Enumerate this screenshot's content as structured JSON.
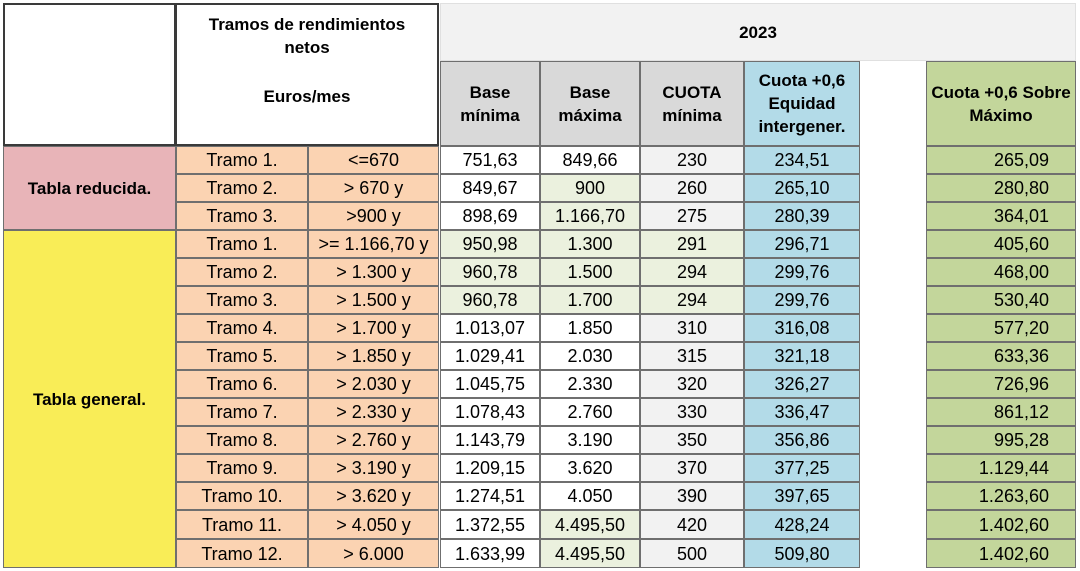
{
  "header": {
    "tramos_title": "Tramos de rendimientos netos",
    "tramos_units": "Euros/mes",
    "year": "2023",
    "columns": [
      "Base mínima",
      "Base máxima",
      "CUOTA mínima",
      "Cuota +0,6 Equidad intergener.",
      "Cuota +0,6 Sobre Máximo"
    ]
  },
  "groups": [
    {
      "label": "Tabla reducida.",
      "color": "#e8b4b8"
    },
    {
      "label": "Tabla general.",
      "color": "#f9ed57"
    }
  ],
  "rows": [
    {
      "tramo": "Tramo 1.",
      "rango": "<=670",
      "base_min": "751,63",
      "base_max": "849,66",
      "cuota_min": "230",
      "cuota_equidad": "234,51",
      "cuota_max": "265,09"
    },
    {
      "tramo": "Tramo 2.",
      "rango": "> 670 y",
      "base_min": "849,67",
      "base_max": "900",
      "cuota_min": "260",
      "cuota_equidad": "265,10",
      "cuota_max": "280,80"
    },
    {
      "tramo": "Tramo 3.",
      "rango": ">900 y",
      "base_min": "898,69",
      "base_max": "1.166,70",
      "cuota_min": "275",
      "cuota_equidad": "280,39",
      "cuota_max": "364,01"
    },
    {
      "tramo": "Tramo 1.",
      "rango": ">= 1.166,70 y",
      "base_min": "950,98",
      "base_max": "1.300",
      "cuota_min": "291",
      "cuota_equidad": "296,71",
      "cuota_max": "405,60"
    },
    {
      "tramo": "Tramo 2.",
      "rango": "> 1.300 y",
      "base_min": "960,78",
      "base_max": "1.500",
      "cuota_min": "294",
      "cuota_equidad": "299,76",
      "cuota_max": "468,00"
    },
    {
      "tramo": "Tramo 3.",
      "rango": "> 1.500 y",
      "base_min": "960,78",
      "base_max": "1.700",
      "cuota_min": "294",
      "cuota_equidad": "299,76",
      "cuota_max": "530,40"
    },
    {
      "tramo": "Tramo 4.",
      "rango": "> 1.700 y",
      "base_min": "1.013,07",
      "base_max": "1.850",
      "cuota_min": "310",
      "cuota_equidad": "316,08",
      "cuota_max": "577,20"
    },
    {
      "tramo": "Tramo 5.",
      "rango": "> 1.850 y",
      "base_min": "1.029,41",
      "base_max": "2.030",
      "cuota_min": "315",
      "cuota_equidad": "321,18",
      "cuota_max": "633,36"
    },
    {
      "tramo": "Tramo 6.",
      "rango": "> 2.030 y",
      "base_min": "1.045,75",
      "base_max": "2.330",
      "cuota_min": "320",
      "cuota_equidad": "326,27",
      "cuota_max": "726,96"
    },
    {
      "tramo": "Tramo 7.",
      "rango": "> 2.330 y",
      "base_min": "1.078,43",
      "base_max": "2.760",
      "cuota_min": "330",
      "cuota_equidad": "336,47",
      "cuota_max": "861,12"
    },
    {
      "tramo": "Tramo 8.",
      "rango": "> 2.760 y",
      "base_min": "1.143,79",
      "base_max": "3.190",
      "cuota_min": "350",
      "cuota_equidad": "356,86",
      "cuota_max": "995,28"
    },
    {
      "tramo": "Tramo 9.",
      "rango": "> 3.190 y",
      "base_min": "1.209,15",
      "base_max": "3.620",
      "cuota_min": "370",
      "cuota_equidad": "377,25",
      "cuota_max": "1.129,44"
    },
    {
      "tramo": "Tramo 10.",
      "rango": "> 3.620 y",
      "base_min": "1.274,51",
      "base_max": "4.050",
      "cuota_min": "390",
      "cuota_equidad": "397,65",
      "cuota_max": "1.263,60"
    },
    {
      "tramo": "Tramo 11.",
      "rango": "> 4.050 y",
      "base_min": "1.372,55",
      "base_max": "4.495,50",
      "cuota_min": "420",
      "cuota_equidad": "428,24",
      "cuota_max": "1.402,60"
    },
    {
      "tramo": "Tramo 12.",
      "rango": "> 6.000",
      "base_min": "1.633,99",
      "base_max": "4.495,50",
      "cuota_min": "500",
      "cuota_equidad": "509,80",
      "cuota_max": "1.402,60"
    }
  ]
}
